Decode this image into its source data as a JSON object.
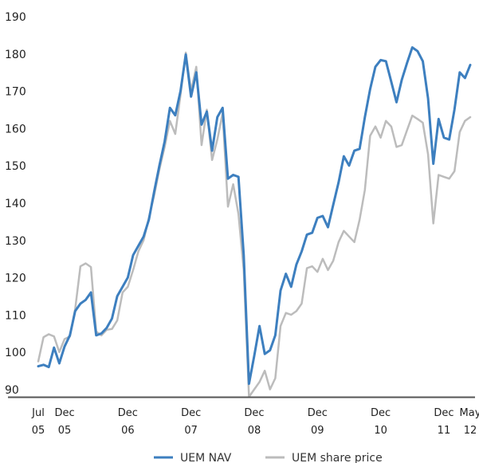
{
  "chart_data": {
    "type": "line",
    "title": "",
    "xlabel": "",
    "ylabel": "",
    "ylim": [
      90,
      190
    ],
    "yticks": [
      90,
      100,
      110,
      120,
      130,
      140,
      150,
      160,
      170,
      180,
      190
    ],
    "xlim": [
      0,
      82
    ],
    "grid": false,
    "legend_position": "bottom",
    "x_ticks": [
      {
        "x": 0,
        "line1": "Jul",
        "line2": "05"
      },
      {
        "x": 5,
        "line1": "Dec",
        "line2": "05"
      },
      {
        "x": 17,
        "line1": "Dec",
        "line2": "06"
      },
      {
        "x": 29,
        "line1": "Dec",
        "line2": "07"
      },
      {
        "x": 41,
        "line1": "Dec",
        "line2": "08"
      },
      {
        "x": 53,
        "line1": "Dec",
        "line2": "09"
      },
      {
        "x": 65,
        "line1": "Dec",
        "line2": "10"
      },
      {
        "x": 77,
        "line1": "Dec",
        "line2": "11"
      },
      {
        "x": 82,
        "line1": "May",
        "line2": "12"
      }
    ],
    "series": [
      {
        "name": "UEM NAV",
        "color": "#3d7fbf",
        "x": [
          0,
          1,
          2,
          3,
          4,
          5,
          6,
          7,
          8,
          9,
          10,
          11,
          12,
          13,
          14,
          15,
          16,
          17,
          18,
          19,
          20,
          21,
          22,
          23,
          24,
          25,
          26,
          27,
          28,
          29,
          30,
          31,
          32,
          33,
          34,
          35,
          36,
          37,
          38,
          39,
          40,
          41,
          42,
          43,
          44,
          45,
          46,
          47,
          48,
          49,
          50,
          51,
          52,
          53,
          54,
          55,
          56,
          57,
          58,
          59,
          60,
          61,
          62,
          63,
          64,
          65,
          66,
          67,
          68,
          69,
          70,
          71,
          72,
          73,
          74,
          75,
          76,
          77,
          78,
          79,
          80,
          81,
          82
        ],
        "values": [
          98.2,
          98.6,
          98,
          103.2,
          99,
          103.5,
          106.5,
          113,
          115,
          116,
          118,
          106.5,
          107,
          108.5,
          111,
          117,
          119.5,
          122,
          128,
          130.5,
          133,
          137.5,
          145,
          152,
          158.5,
          167.5,
          165.5,
          172,
          181.8,
          170.5,
          177,
          163,
          166.5,
          156,
          165,
          167.5,
          148.5,
          149.5,
          149,
          128,
          93.5,
          101,
          109,
          101.5,
          102.5,
          106.5,
          118.5,
          123,
          119.5,
          125.5,
          129,
          133.5,
          134,
          138,
          138.5,
          135.5,
          141.5,
          147.5,
          154.5,
          152,
          156,
          156.5,
          165,
          172.5,
          178.5,
          180.3,
          180,
          174.5,
          169,
          175,
          179.5,
          183.7,
          182.7,
          180,
          170,
          152.5,
          164.5,
          159.5,
          159,
          167,
          177,
          175.5,
          179
        ]
      },
      {
        "name": "UEM share price",
        "color": "#bcbcbc",
        "x": [
          0,
          1,
          2,
          3,
          4,
          5,
          6,
          7,
          8,
          9,
          10,
          11,
          12,
          13,
          14,
          15,
          16,
          17,
          18,
          19,
          20,
          21,
          22,
          23,
          24,
          25,
          26,
          27,
          28,
          29,
          30,
          31,
          32,
          33,
          34,
          35,
          36,
          37,
          38,
          39,
          40,
          41,
          42,
          43,
          44,
          45,
          46,
          47,
          48,
          49,
          50,
          51,
          52,
          53,
          54,
          55,
          56,
          57,
          58,
          59,
          60,
          61,
          62,
          63,
          64,
          65,
          66,
          67,
          68,
          69,
          70,
          71,
          72,
          73,
          74,
          75,
          76,
          77,
          78,
          79,
          80,
          81,
          82
        ],
        "values": [
          99.5,
          106,
          106.8,
          106.2,
          102,
          105.5,
          106.2,
          113.5,
          125,
          125.8,
          124.8,
          107.5,
          106.5,
          108,
          108.2,
          110.5,
          118,
          119.5,
          124,
          129,
          132,
          138,
          144,
          151,
          157,
          164,
          160.5,
          171,
          182.3,
          172,
          178.5,
          157.5,
          167,
          153.5,
          159,
          166,
          141,
          147,
          139,
          124,
          90,
          92,
          94,
          97,
          92,
          95,
          109,
          112.5,
          112,
          113,
          115,
          124.5,
          125,
          123.5,
          127,
          124,
          126.5,
          131.5,
          134.5,
          133,
          131.5,
          137.5,
          145.5,
          160,
          162.5,
          159.5,
          164,
          162.5,
          157,
          157.5,
          161.5,
          165.4,
          164.5,
          163.5,
          155,
          136.5,
          149.5,
          149,
          148.5,
          150.5,
          161,
          164,
          165
        ]
      }
    ]
  }
}
